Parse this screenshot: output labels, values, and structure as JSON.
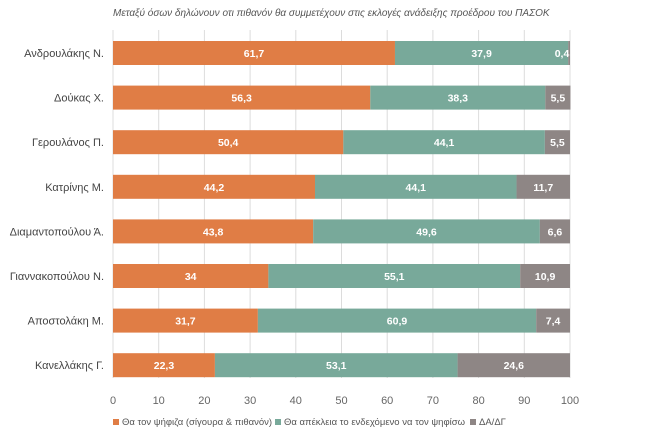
{
  "chart_data": {
    "type": "bar",
    "orientation": "horizontal",
    "stacked": true,
    "title": "Μεταξύ όσων δηλώνουν οτι πιθανόν θα συμμετέχουν στις εκλογές ανάδειξης προέδρου του ΠΑΣΟΚ",
    "categories": [
      "Ανδρουλάκης Ν.",
      "Δούκας Χ.",
      "Γερουλάνος Π.",
      "Κατρίνης Μ.",
      "Διαμαντοπούλου Ά.",
      "Γιαννακοπούλου Ν.",
      "Αποστολάκη Μ.",
      "Κανελλάκης Γ."
    ],
    "series": [
      {
        "name": "Θα τον ψήφιζα (σίγουρα & πιθανόν)",
        "color": "#e07d45",
        "values": [
          61.7,
          56.3,
          50.4,
          44.2,
          43.8,
          34,
          31.7,
          22.3
        ],
        "labels": [
          "61,7",
          "56,3",
          "50,4",
          "44,2",
          "43,8",
          "34",
          "31,7",
          "22,3"
        ]
      },
      {
        "name": "Θα απέκλεια το ενδεχόμενο να τον ψηφίσω",
        "color": "#78a99a",
        "values": [
          37.9,
          38.3,
          44.1,
          44.1,
          49.6,
          55.1,
          60.9,
          53.1
        ],
        "labels": [
          "37,9",
          "38,3",
          "44,1",
          "44,1",
          "49,6",
          "55,1",
          "60,9",
          "53,1"
        ]
      },
      {
        "name": "ΔΑ/ΔΓ",
        "color": "#8e8685",
        "values": [
          0.4,
          5.5,
          5.5,
          11.7,
          6.6,
          10.9,
          7.4,
          24.6
        ],
        "labels": [
          "0,4",
          "5,5",
          "5,5",
          "11,7",
          "6,6",
          "10,9",
          "7,4",
          "24,6"
        ]
      }
    ],
    "xlim": [
      0,
      100
    ],
    "xticks": [
      "0",
      "10",
      "20",
      "30",
      "40",
      "50",
      "60",
      "70",
      "80",
      "90",
      "100"
    ],
    "grid": true,
    "legend": "bottom"
  }
}
